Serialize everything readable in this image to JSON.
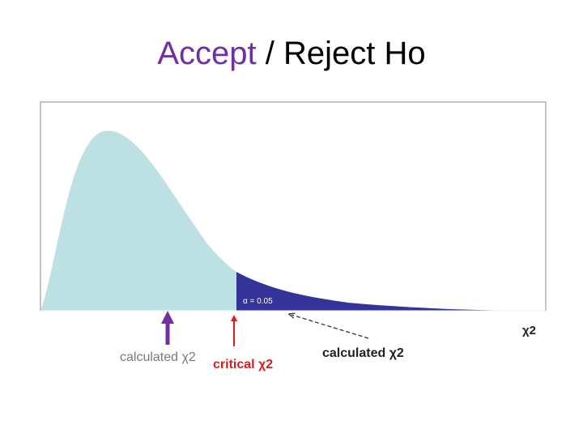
{
  "title": {
    "accept": "Accept",
    "separator": " / ",
    "reject": "Reject Ho"
  },
  "diagram": {
    "alpha_label": "α = 0.05",
    "x_axis_label": "χ2",
    "calculated_left_label": "calculated χ2",
    "critical_label": "critical χ2",
    "calculated_right_label": "calculated χ2"
  },
  "colors": {
    "accept_region": "#bde0e3",
    "reject_region": "#33339a",
    "accept_text": "#7030a0",
    "calculated_left_text": "#7a7a7a",
    "critical": "#e01b1b",
    "arrow_left": "#7030a0",
    "frame": "#9e9e9e"
  }
}
